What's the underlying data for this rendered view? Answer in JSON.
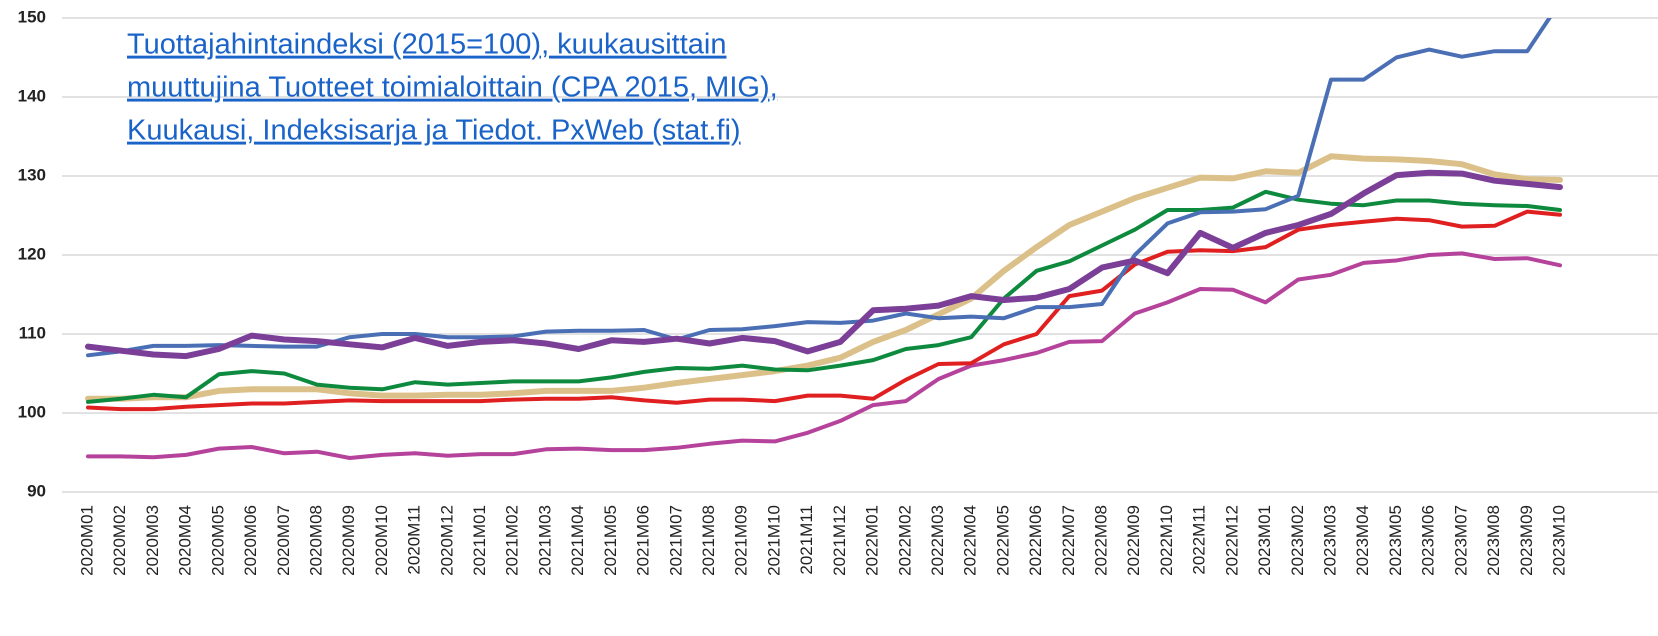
{
  "chart_data": {
    "type": "line",
    "annotation": [
      "Tuottajahintaindeksi (2015=100), kuukausittain",
      "muuttujina Tuotteet toimialoittain (CPA 2015, MIG),",
      "Kuukausi, Indeksisarja ja Tiedot. PxWeb (stat.fi)"
    ],
    "categories": [
      "2020M01",
      "2020M02",
      "2020M03",
      "2020M04",
      "2020M05",
      "2020M06",
      "2020M07",
      "2020M08",
      "2020M09",
      "2020M10",
      "2020M11",
      "2020M12",
      "2021M01",
      "2021M02",
      "2021M03",
      "2021M04",
      "2021M05",
      "2021M06",
      "2021M07",
      "2021M08",
      "2021M09",
      "2021M10",
      "2021M11",
      "2021M12",
      "2022M01",
      "2022M02",
      "2022M03",
      "2022M04",
      "2022M05",
      "2022M06",
      "2022M07",
      "2022M08",
      "2022M09",
      "2022M10",
      "2022M11",
      "2022M12",
      "2023M01",
      "2023M02",
      "2023M03",
      "2023M04",
      "2023M05",
      "2023M06",
      "2023M07",
      "2023M08",
      "2023M09",
      "2023M10"
    ],
    "ylim": [
      90,
      150
    ],
    "yticks": [
      90,
      100,
      110,
      120,
      130,
      140,
      150
    ],
    "grid": true,
    "series": [
      {
        "color": "#dcc08a",
        "width": 6,
        "values": [
          101.8,
          101.8,
          102,
          102,
          102.8,
          103,
          103,
          103,
          102.5,
          102.2,
          102.2,
          102.3,
          102.3,
          102.5,
          102.8,
          102.8,
          102.8,
          103.2,
          103.8,
          104.3,
          104.8,
          105.3,
          106,
          107,
          109,
          110.5,
          112.5,
          114.5,
          118,
          121,
          123.8,
          125.5,
          127.2,
          128.5,
          129.8,
          129.7,
          130.6,
          130.4,
          132.5,
          132.2,
          132.1,
          131.9,
          131.5,
          130.2,
          129.6,
          129.5
        ]
      },
      {
        "color": "#b5429b",
        "width": 4,
        "values": [
          94.5,
          94.5,
          94.4,
          94.7,
          95.5,
          95.7,
          94.9,
          95.1,
          94.3,
          94.7,
          94.9,
          94.6,
          94.8,
          94.8,
          95.4,
          95.5,
          95.3,
          95.3,
          95.6,
          96.1,
          96.5,
          96.4,
          97.5,
          99,
          101,
          101.5,
          104.3,
          106,
          106.7,
          107.6,
          109,
          109.1,
          112.6,
          114,
          115.7,
          115.6,
          114,
          116.9,
          117.5,
          119,
          119.3,
          120,
          120.2,
          119.5,
          119.6,
          118.7
        ]
      },
      {
        "color": "#e02020",
        "width": 4,
        "values": [
          100.7,
          100.5,
          100.5,
          100.8,
          101,
          101.2,
          101.2,
          101.4,
          101.6,
          101.5,
          101.5,
          101.5,
          101.5,
          101.7,
          101.8,
          101.8,
          102,
          101.6,
          101.3,
          101.7,
          101.7,
          101.5,
          102.2,
          102.2,
          101.8,
          104.2,
          106.2,
          106.3,
          108.7,
          110,
          114.8,
          115.5,
          118.8,
          120.4,
          120.6,
          120.5,
          121,
          123.2,
          123.8,
          124.2,
          124.6,
          124.4,
          123.6,
          123.7,
          125.5,
          125.1
        ]
      },
      {
        "color": "#0e8a3e",
        "width": 4,
        "values": [
          101.4,
          101.8,
          102.3,
          102,
          104.9,
          105.3,
          105,
          103.6,
          103.2,
          103,
          103.9,
          103.6,
          103.8,
          104,
          104,
          104,
          104.5,
          105.2,
          105.7,
          105.6,
          106,
          105.5,
          105.4,
          106,
          106.7,
          108.1,
          108.6,
          109.6,
          114.5,
          118,
          119.2,
          121.2,
          123.2,
          125.7,
          125.7,
          126,
          128,
          127,
          126.5,
          126.3,
          126.9,
          126.9,
          126.5,
          126.3,
          126.2,
          125.7
        ]
      },
      {
        "color": "#4a6fb5",
        "width": 4,
        "values": [
          107.3,
          107.8,
          108.5,
          108.5,
          108.6,
          108.5,
          108.4,
          108.4,
          109.6,
          110,
          110,
          109.6,
          109.6,
          109.7,
          110.3,
          110.4,
          110.4,
          110.5,
          109.3,
          110.5,
          110.6,
          111,
          111.5,
          111.4,
          111.7,
          112.6,
          112,
          112.2,
          112,
          113.4,
          113.4,
          113.8,
          120,
          124,
          125.4,
          125.5,
          125.8,
          127.5,
          142.2,
          142.2,
          145,
          146,
          145.1,
          145.8,
          145.8,
          152
        ]
      },
      {
        "color": "#7b3f98",
        "width": 6,
        "values": [
          108.4,
          107.9,
          107.4,
          107.2,
          108.1,
          109.8,
          109.3,
          109.1,
          108.7,
          108.3,
          109.5,
          108.5,
          109,
          109.2,
          108.8,
          108.1,
          109.2,
          109,
          109.4,
          108.8,
          109.5,
          109.1,
          107.8,
          109,
          113,
          113.2,
          113.6,
          114.8,
          114.3,
          114.6,
          115.7,
          118.4,
          119.3,
          117.7,
          122.8,
          120.9,
          122.8,
          123.8,
          125.2,
          127.8,
          130.1,
          130.4,
          130.3,
          129.4,
          129,
          128.6
        ]
      }
    ]
  }
}
